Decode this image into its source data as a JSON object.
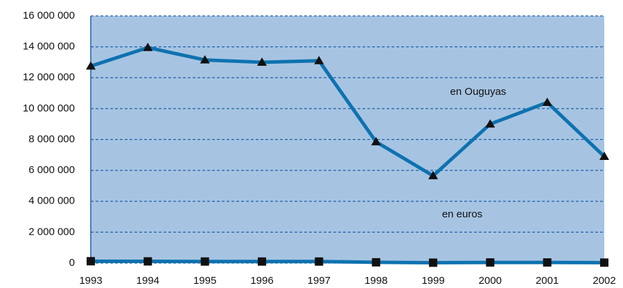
{
  "chart_data": {
    "type": "line",
    "x": [
      "1993",
      "1994",
      "1995",
      "1996",
      "1997",
      "1998",
      "1999",
      "2000",
      "2001",
      "2002"
    ],
    "series": [
      {
        "name": "en Ouguyas",
        "color": "#0e72b0",
        "marker": "triangle",
        "values": [
          12750000,
          13950000,
          13150000,
          13000000,
          13100000,
          7850000,
          5650000,
          9000000,
          10400000,
          6900000
        ]
      },
      {
        "name": "en euros",
        "color": "#0e72b0",
        "marker": "square",
        "values": [
          120000,
          110000,
          100000,
          100000,
          100000,
          50000,
          25000,
          40000,
          40000,
          30000
        ]
      }
    ],
    "ylim": [
      0,
      16000000
    ],
    "yticks": [
      0,
      {
        "value": 2000000,
        "label": "2 000 000"
      },
      {
        "value": 4000000,
        "label": "4 000 000"
      },
      {
        "value": 6000000,
        "label": "6 000 000"
      },
      {
        "value": 8000000,
        "label": "8 000 000"
      },
      {
        "value": 10000000,
        "label": "10 000 000"
      },
      {
        "value": 12000000,
        "label": "12 000 000"
      },
      {
        "value": 14000000,
        "label": "14 000 000"
      },
      {
        "value": 16000000,
        "label": "16 000 000"
      }
    ],
    "grid": true,
    "plot_background": "#a6c4e2"
  }
}
